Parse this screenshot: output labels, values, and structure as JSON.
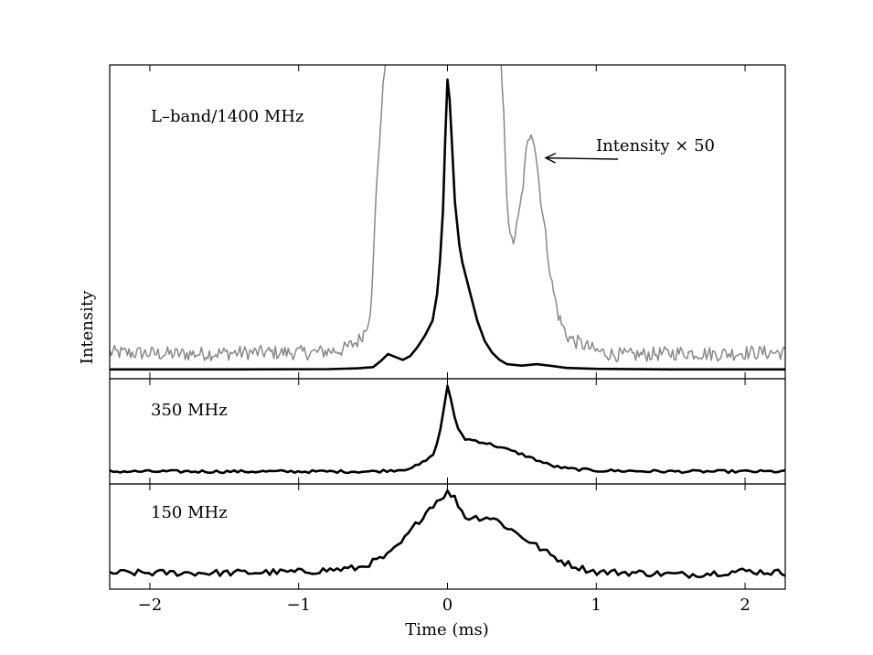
{
  "chart_data": {
    "type": "line",
    "xlabel": "Time (ms)",
    "ylabel": "Intensity",
    "xlim": [
      -2.27,
      2.27
    ],
    "xticks": [
      -2,
      -1,
      0,
      1,
      2
    ],
    "xtick_labels": [
      "−2",
      "−1",
      "0",
      "1",
      "2"
    ],
    "colors": {
      "profile": "#000000",
      "scaled": "#888888",
      "frame": "#000000"
    },
    "annotation": {
      "text": "Intensity × 50",
      "target": [
        0.66,
        0.73
      ]
    },
    "panels": [
      {
        "label": "L–band/1400 MHz",
        "ylim": [
          -0.03,
          1.05
        ],
        "series": [
          {
            "name": "profile",
            "x": [
              -2.27,
              -1.5,
              -0.8,
              -0.6,
              -0.5,
              -0.45,
              -0.4,
              -0.35,
              -0.3,
              -0.25,
              -0.2,
              -0.15,
              -0.1,
              -0.07,
              -0.05,
              -0.03,
              -0.015,
              0.0,
              0.015,
              0.03,
              0.05,
              0.08,
              0.1,
              0.15,
              0.2,
              0.25,
              0.3,
              0.35,
              0.4,
              0.5,
              0.6,
              0.7,
              0.8,
              1.0,
              1.5,
              2.27
            ],
            "y": [
              0.002,
              0.002,
              0.003,
              0.006,
              0.01,
              0.03,
              0.055,
              0.045,
              0.035,
              0.048,
              0.08,
              0.12,
              0.17,
              0.26,
              0.38,
              0.55,
              0.8,
              1.0,
              0.93,
              0.78,
              0.58,
              0.43,
              0.37,
              0.27,
              0.17,
              0.1,
              0.06,
              0.035,
              0.02,
              0.015,
              0.02,
              0.014,
              0.007,
              0.004,
              0.002,
              0.002
            ]
          },
          {
            "name": "scaled",
            "scale": 50,
            "x": [
              -2.27,
              -1.8,
              -1.3,
              -0.9,
              -0.7,
              -0.6,
              -0.55,
              -0.52,
              -0.5,
              -0.48,
              -0.45,
              -0.42,
              -0.4,
              0.34,
              0.36,
              0.38,
              0.4,
              0.42,
              0.44,
              0.47,
              0.5,
              0.53,
              0.56,
              0.58,
              0.6,
              0.62,
              0.65,
              0.7,
              0.75,
              0.8,
              0.85,
              0.9,
              1.0,
              1.1,
              1.2,
              1.4,
              1.6,
              1.8,
              2.0,
              2.27
            ],
            "y": [
              0.06,
              0.055,
              0.06,
              0.06,
              0.07,
              0.1,
              0.14,
              0.2,
              0.35,
              0.6,
              0.85,
              1.05,
              1.2,
              1.2,
              1.05,
              0.85,
              0.6,
              0.45,
              0.44,
              0.5,
              0.6,
              0.75,
              0.83,
              0.8,
              0.72,
              0.62,
              0.5,
              0.3,
              0.18,
              0.12,
              0.1,
              0.09,
              0.065,
              0.055,
              0.05,
              0.055,
              0.06,
              0.055,
              0.06,
              0.06
            ]
          }
        ]
      },
      {
        "label": "350 MHz",
        "ylim": [
          -0.05,
          1.05
        ],
        "series": [
          {
            "name": "profile",
            "x": [
              -2.27,
              -1.5,
              -1.0,
              -0.5,
              -0.3,
              -0.2,
              -0.12,
              -0.08,
              -0.05,
              -0.02,
              0.0,
              0.02,
              0.05,
              0.08,
              0.12,
              0.2,
              0.3,
              0.4,
              0.5,
              0.6,
              0.7,
              0.8,
              1.0,
              1.5,
              2.27
            ],
            "y": [
              0.08,
              0.08,
              0.08,
              0.08,
              0.1,
              0.14,
              0.22,
              0.3,
              0.5,
              0.78,
              0.98,
              0.85,
              0.62,
              0.5,
              0.42,
              0.4,
              0.36,
              0.31,
              0.26,
              0.2,
              0.14,
              0.11,
              0.09,
              0.08,
              0.08
            ]
          }
        ]
      },
      {
        "label": "150 MHz",
        "ylim": [
          -0.05,
          1.05
        ],
        "series": [
          {
            "name": "profile",
            "x": [
              -2.27,
              -1.5,
              -1.0,
              -0.6,
              -0.4,
              -0.3,
              -0.2,
              -0.12,
              -0.05,
              0.0,
              0.05,
              0.12,
              0.2,
              0.3,
              0.4,
              0.5,
              0.6,
              0.7,
              0.8,
              0.9,
              1.0,
              1.3,
              1.6,
              2.0,
              2.27
            ],
            "y": [
              0.12,
              0.12,
              0.13,
              0.17,
              0.3,
              0.45,
              0.65,
              0.8,
              0.9,
              0.96,
              0.9,
              0.7,
              0.7,
              0.7,
              0.6,
              0.5,
              0.4,
              0.3,
              0.22,
              0.17,
              0.13,
              0.12,
              0.1,
              0.14,
              0.12
            ]
          }
        ]
      }
    ]
  }
}
